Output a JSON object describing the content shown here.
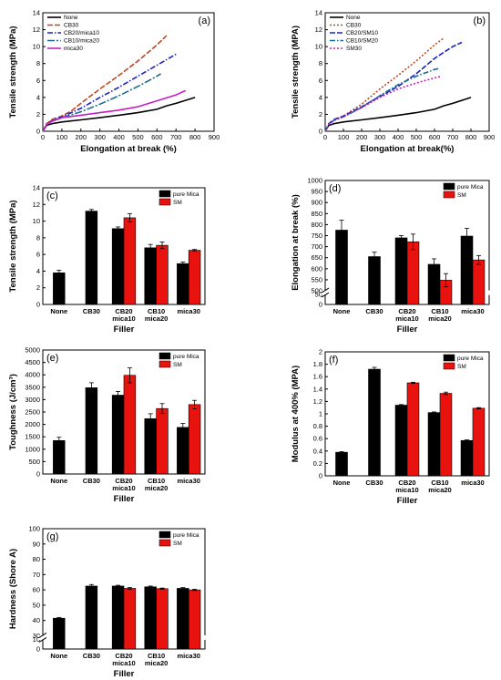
{
  "colors": {
    "black": "#000000",
    "red": "#e8130f",
    "navy": "#1b22c4",
    "teal": "#1b6b8f",
    "magenta": "#c41fc4",
    "brown": "#c0451f"
  },
  "chart_data": [
    {
      "id": "a",
      "type": "line",
      "panel_label": "(a)",
      "xlabel": "Elongation at break (%)",
      "ylabel": "Tensile strength (MPa)",
      "xlim": [
        0,
        900
      ],
      "ylim": [
        0,
        14
      ],
      "xticks": [
        0,
        100,
        200,
        300,
        400,
        500,
        600,
        700,
        800,
        900
      ],
      "yticks": [
        0,
        2,
        4,
        6,
        8,
        10,
        12,
        14
      ],
      "legend_position": "top-left",
      "series": [
        {
          "name": "None",
          "color": "#000000",
          "dash": "",
          "x": [
            0,
            20,
            50,
            100,
            200,
            300,
            400,
            500,
            600,
            650,
            700,
            800
          ],
          "y": [
            0,
            0.7,
            0.9,
            1.1,
            1.35,
            1.6,
            1.9,
            2.2,
            2.6,
            3.0,
            3.3,
            4.0
          ]
        },
        {
          "name": "CB30",
          "color": "#c0451f",
          "dash": "6,2",
          "x": [
            0,
            20,
            50,
            100,
            150,
            200,
            300,
            400,
            500,
            600,
            650
          ],
          "y": [
            0,
            0.9,
            1.4,
            1.8,
            2.4,
            3.3,
            5.0,
            6.6,
            8.3,
            10.2,
            11.3
          ]
        },
        {
          "name": "CB20/mica10",
          "color": "#1b22c4",
          "dash": "6,2,1.5,2",
          "x": [
            0,
            20,
            50,
            100,
            200,
            300,
            400,
            500,
            600,
            700
          ],
          "y": [
            0,
            0.8,
            1.3,
            1.7,
            2.7,
            4.0,
            5.2,
            6.5,
            7.8,
            9.1
          ]
        },
        {
          "name": "CB10/mica20",
          "color": "#1b6b8f",
          "dash": "8,2,2,2",
          "x": [
            0,
            20,
            50,
            100,
            200,
            300,
            400,
            500,
            600,
            620
          ],
          "y": [
            0,
            0.8,
            1.2,
            1.6,
            2.3,
            3.2,
            4.2,
            5.3,
            6.5,
            6.8
          ]
        },
        {
          "name": "mica30",
          "color": "#c41fc4",
          "dash": "",
          "x": [
            0,
            20,
            50,
            100,
            200,
            300,
            400,
            500,
            600,
            700,
            750
          ],
          "y": [
            0,
            0.8,
            1.2,
            1.6,
            1.9,
            2.2,
            2.5,
            2.9,
            3.6,
            4.3,
            4.8
          ]
        }
      ]
    },
    {
      "id": "b",
      "type": "line",
      "panel_label": "(b)",
      "xlabel": "Elongation at break(%)",
      "ylabel": "Tensile strength (MPA)",
      "xlim": [
        0,
        900
      ],
      "ylim": [
        0,
        14
      ],
      "xticks": [
        0,
        100,
        200,
        300,
        400,
        500,
        600,
        700,
        800,
        900
      ],
      "yticks": [
        0,
        2,
        4,
        6,
        8,
        10,
        12,
        14
      ],
      "legend_position": "top-left",
      "series": [
        {
          "name": "None",
          "color": "#000000",
          "dash": "",
          "x": [
            0,
            20,
            50,
            100,
            200,
            300,
            400,
            500,
            600,
            650,
            700,
            800
          ],
          "y": [
            0,
            0.7,
            0.9,
            1.1,
            1.35,
            1.6,
            1.9,
            2.2,
            2.6,
            3.0,
            3.3,
            4.0
          ]
        },
        {
          "name": "CB30",
          "color": "#c0451f",
          "dash": "2,2",
          "x": [
            0,
            20,
            50,
            100,
            200,
            300,
            400,
            500,
            600,
            650
          ],
          "y": [
            0,
            0.9,
            1.4,
            1.8,
            3.2,
            5.0,
            6.6,
            8.3,
            10.2,
            11.0
          ]
        },
        {
          "name": "CB20/SM10",
          "color": "#1b22c4",
          "dash": "6,2",
          "x": [
            0,
            20,
            50,
            100,
            200,
            300,
            400,
            500,
            600,
            700,
            750
          ],
          "y": [
            0,
            0.9,
            1.4,
            1.8,
            2.9,
            4.1,
            5.3,
            6.8,
            8.6,
            10.0,
            10.5
          ]
        },
        {
          "name": "CB10/SM20",
          "color": "#1b6b8f",
          "dash": "6,2,1.5,2",
          "x": [
            0,
            20,
            50,
            100,
            200,
            300,
            400,
            500,
            600,
            620
          ],
          "y": [
            0,
            0.8,
            1.3,
            1.7,
            2.8,
            4.2,
            5.5,
            6.5,
            7.3,
            7.4
          ]
        },
        {
          "name": "SM30",
          "color": "#c41fc4",
          "dash": "2,2",
          "x": [
            0,
            20,
            50,
            100,
            200,
            300,
            400,
            500,
            600,
            640
          ],
          "y": [
            0,
            0.8,
            1.3,
            1.7,
            2.8,
            4.0,
            5.0,
            5.7,
            6.3,
            6.5
          ]
        }
      ]
    },
    {
      "id": "c",
      "type": "bar",
      "panel_label": "(c)",
      "xlabel": "Filler",
      "ylabel": "Tensile strength (MPa)",
      "ylim": [
        0,
        14
      ],
      "yticks": [
        0,
        2,
        4,
        6,
        8,
        10,
        12,
        14
      ],
      "categories": [
        "None",
        "CB30",
        "CB20 mica10",
        "CB10 mica20",
        "mica30"
      ],
      "category_lines": [
        [
          "None"
        ],
        [
          "CB30"
        ],
        [
          "CB20",
          "mica10"
        ],
        [
          "CB10",
          "mica20"
        ],
        [
          "mica30"
        ]
      ],
      "legend_position": "top-right",
      "series": [
        {
          "name": "pure Mica",
          "color": "#000000",
          "values": [
            3.8,
            11.2,
            9.1,
            6.8,
            4.9
          ],
          "errors": [
            0.3,
            0.2,
            0.2,
            0.4,
            0.2
          ]
        },
        {
          "name": "SM",
          "color": "#e8130f",
          "values": [
            null,
            null,
            10.4,
            7.1,
            6.5
          ],
          "errors": [
            null,
            null,
            0.5,
            0.4,
            0.1
          ]
        }
      ]
    },
    {
      "id": "d",
      "type": "bar",
      "panel_label": "(d)",
      "xlabel": "Filler",
      "ylabel": "Elongation at break (%)",
      "ylim": [
        0,
        1000
      ],
      "axis_break": [
        50,
        500
      ],
      "yticks": [
        0,
        50,
        500,
        550,
        600,
        650,
        700,
        750,
        800,
        850,
        900,
        950,
        1000
      ],
      "categories": [
        "None",
        "CB30",
        "CB20 mica10",
        "CB10 mica20",
        "mica30"
      ],
      "category_lines": [
        [
          "None"
        ],
        [
          "CB30"
        ],
        [
          "CB20",
          "mica10"
        ],
        [
          "CB10",
          "mica20"
        ],
        [
          "mica30"
        ]
      ],
      "legend_position": "top-right",
      "series": [
        {
          "name": "pure Mica",
          "color": "#000000",
          "values": [
            775,
            655,
            740,
            620,
            748
          ],
          "errors": [
            45,
            20,
            10,
            25,
            35
          ]
        },
        {
          "name": "SM",
          "color": "#e8130f",
          "values": [
            null,
            null,
            722,
            548,
            640
          ],
          "errors": [
            null,
            null,
            35,
            30,
            20
          ]
        }
      ]
    },
    {
      "id": "e",
      "type": "bar",
      "panel_label": "(e)",
      "xlabel": "Filler",
      "ylabel": "Toughness (J/cm³)",
      "ylim": [
        0,
        5000
      ],
      "yticks": [
        0,
        500,
        1000,
        1500,
        2000,
        2500,
        3000,
        3500,
        4000,
        4500,
        5000
      ],
      "categories": [
        "None",
        "CB30",
        "CB20 mica10",
        "CB10 mica20",
        "mica30"
      ],
      "category_lines": [
        [
          "None"
        ],
        [
          "CB30"
        ],
        [
          "CB20",
          "mica10"
        ],
        [
          "CB10",
          "mica20"
        ],
        [
          "mica30"
        ]
      ],
      "legend_position": "top-right",
      "series": [
        {
          "name": "pure Mica",
          "color": "#000000",
          "values": [
            1350,
            3480,
            3180,
            2230,
            1880
          ],
          "errors": [
            130,
            200,
            150,
            200,
            160
          ]
        },
        {
          "name": "SM",
          "color": "#e8130f",
          "values": [
            null,
            null,
            3980,
            2640,
            2800
          ],
          "errors": [
            null,
            null,
            300,
            200,
            170
          ]
        }
      ]
    },
    {
      "id": "f",
      "type": "bar",
      "panel_label": "(f)",
      "xlabel": "Filler",
      "ylabel": "Modulus at 400% (MPA)",
      "ylim": [
        0,
        2.0
      ],
      "yticks": [
        0.0,
        0.2,
        0.4,
        0.6,
        0.8,
        1.0,
        1.2,
        1.4,
        1.6,
        1.8,
        2.0
      ],
      "categories": [
        "None",
        "CB30",
        "CB20 mica10",
        "CB10 mica20",
        "mica30"
      ],
      "category_lines": [
        [
          "None"
        ],
        [
          "CB30"
        ],
        [
          "CB20",
          "mica10"
        ],
        [
          "CB10",
          "mica20"
        ],
        [
          "mica30"
        ]
      ],
      "legend_position": "top-right",
      "series": [
        {
          "name": "pure Mica",
          "color": "#000000",
          "values": [
            0.38,
            1.72,
            1.14,
            1.02,
            0.57
          ],
          "errors": [
            0.01,
            0.03,
            0.01,
            0.01,
            0.01
          ]
        },
        {
          "name": "SM",
          "color": "#e8130f",
          "values": [
            null,
            null,
            1.5,
            1.33,
            1.09
          ],
          "errors": [
            null,
            null,
            0.01,
            0.02,
            0.01
          ]
        }
      ]
    },
    {
      "id": "g",
      "type": "bar",
      "panel_label": "(g)",
      "xlabel": "Filler",
      "ylabel": "Hardness (Shore A)",
      "ylim": [
        0,
        100
      ],
      "axis_break": [
        10,
        30
      ],
      "yticks": [
        0,
        10,
        30,
        40,
        50,
        60,
        70,
        80,
        90,
        100
      ],
      "categories": [
        "None",
        "CB30",
        "CB20 mica10",
        "CB10 mica20",
        "mica30"
      ],
      "category_lines": [
        [
          "None"
        ],
        [
          "CB30"
        ],
        [
          "CB20",
          "mica10"
        ],
        [
          "CB10",
          "mica20"
        ],
        [
          "mica30"
        ]
      ],
      "legend_position": "top-right",
      "series": [
        {
          "name": "pure Mica",
          "color": "#000000",
          "values": [
            41.5,
            62.5,
            62.5,
            62,
            61
          ],
          "errors": [
            0.5,
            1,
            0.5,
            0.5,
            0.5
          ]
        },
        {
          "name": "SM",
          "color": "#e8130f",
          "values": [
            null,
            null,
            61,
            60.8,
            60
          ],
          "errors": [
            null,
            null,
            0.5,
            0.4,
            0.4
          ]
        }
      ]
    }
  ]
}
